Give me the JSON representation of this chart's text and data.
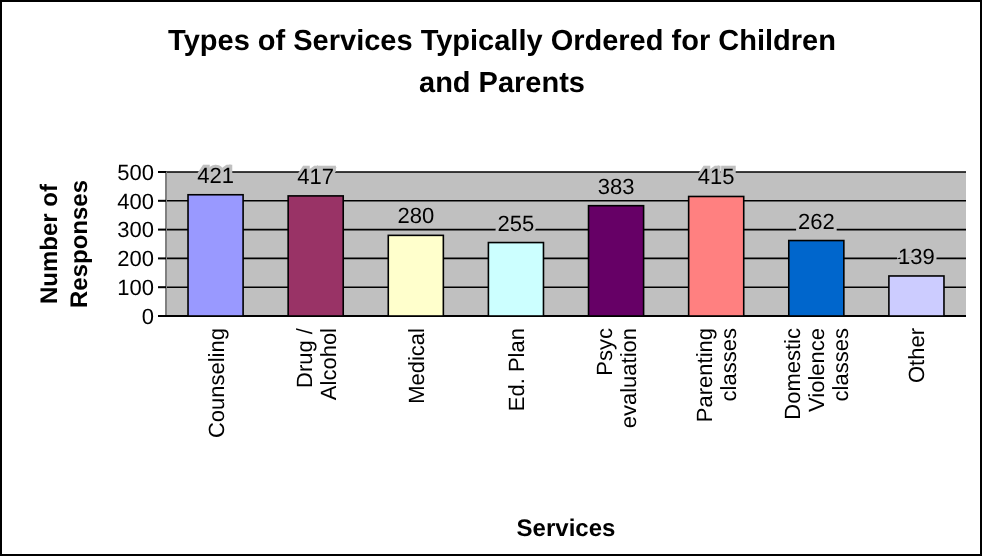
{
  "chart_data": {
    "type": "bar",
    "title": "Types of Services Typically Ordered for Children\nand Parents",
    "xlabel": "Services",
    "ylabel": "Number of\nResponses",
    "categories": [
      "Counseling",
      "Drug /\nAlcohol",
      "Medical",
      "Ed. Plan",
      "Psyc\nevaluation",
      "Parenting\nclasses",
      "Domestic\nViolence\nclasses",
      "Other"
    ],
    "values": [
      421,
      417,
      280,
      255,
      383,
      415,
      262,
      139
    ],
    "colors": [
      "#9999ff",
      "#993366",
      "#ffffcc",
      "#ccffff",
      "#660066",
      "#ff8080",
      "#0066cc",
      "#ccccff"
    ],
    "ylim": [
      0,
      500
    ],
    "yticks": [
      0,
      100,
      200,
      300,
      400,
      500
    ],
    "grid": "y",
    "data_labels": true
  }
}
